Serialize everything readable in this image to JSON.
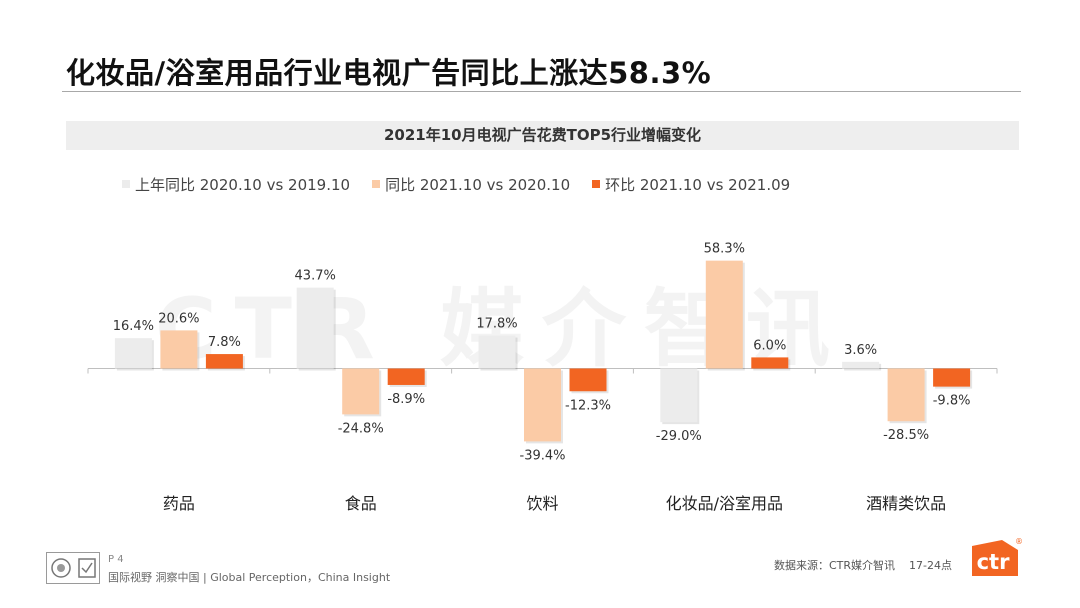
{
  "page": {
    "title": "化妆品/浴室用品行业电视广告同比上涨达58.3%",
    "watermark": "CTR 媒介智讯"
  },
  "chart_data": {
    "type": "bar",
    "title": "2021年10月电视广告花费TOP5行业增幅变化",
    "categories": [
      "药品",
      "食品",
      "饮料",
      "化妆品/浴室用品",
      "酒精类饮品"
    ],
    "series": [
      {
        "name": "上年同比 2020.10 vs 2019.10",
        "color": "#ececec",
        "values": [
          16.4,
          43.7,
          17.8,
          -29.0,
          3.6
        ]
      },
      {
        "name": "同比 2021.10 vs 2020.10",
        "color": "#fbcba6",
        "values": [
          20.6,
          -24.8,
          -39.4,
          58.3,
          -28.5
        ]
      },
      {
        "name": "环比 2021.10 vs 2021.09",
        "color": "#f26522",
        "values": [
          7.8,
          -8.9,
          -12.3,
          6.0,
          -9.8
        ]
      }
    ],
    "value_suffix": "%",
    "grid": false,
    "legend_position": "top-left"
  },
  "footer": {
    "page_label": "P 4",
    "slogan": "国际视野 洞察中国 | Global Perception，China Insight",
    "source": "数据来源：CTR媒介智讯",
    "code": "17-24点",
    "brand": "ctr",
    "brand_color": "#f26522"
  }
}
